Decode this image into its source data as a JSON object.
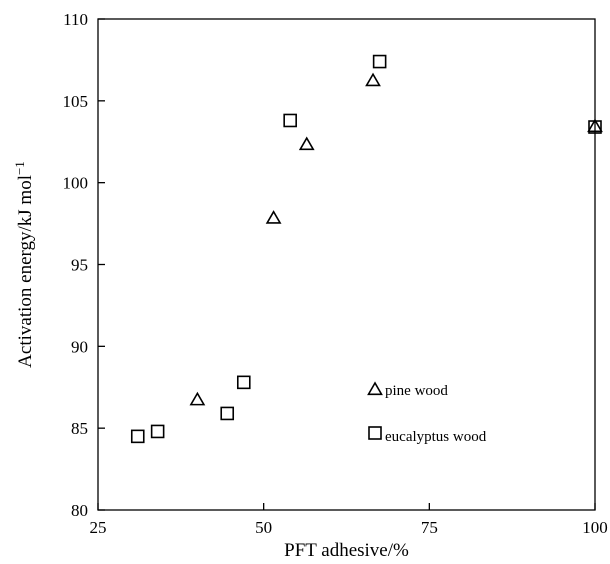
{
  "chart_data": {
    "type": "scatter",
    "xlabel": "PFT adhesive/%",
    "ylabel": "Activation energy/kJ mol",
    "ylabel_superscript": "−1",
    "xlim": [
      25,
      100
    ],
    "ylim": [
      80,
      110
    ],
    "x_ticks": [
      "25",
      "50",
      "75",
      "100"
    ],
    "y_ticks": [
      "80",
      "85",
      "90",
      "95",
      "100",
      "105",
      "110"
    ],
    "grid": false,
    "legend_position": "bottom-right",
    "series": [
      {
        "name": "pine wood",
        "marker": "triangle",
        "points": [
          {
            "x": 40,
            "y": 86.7
          },
          {
            "x": 51.5,
            "y": 97.8
          },
          {
            "x": 56.5,
            "y": 102.3
          },
          {
            "x": 66.5,
            "y": 106.2
          },
          {
            "x": 100,
            "y": 103.4
          }
        ]
      },
      {
        "name": "eucalyptus wood",
        "marker": "square",
        "points": [
          {
            "x": 31,
            "y": 84.5
          },
          {
            "x": 34,
            "y": 84.8
          },
          {
            "x": 44.5,
            "y": 85.9
          },
          {
            "x": 47,
            "y": 87.8
          },
          {
            "x": 54,
            "y": 103.8
          },
          {
            "x": 67.5,
            "y": 107.4
          },
          {
            "x": 100,
            "y": 103.4
          }
        ]
      }
    ]
  }
}
